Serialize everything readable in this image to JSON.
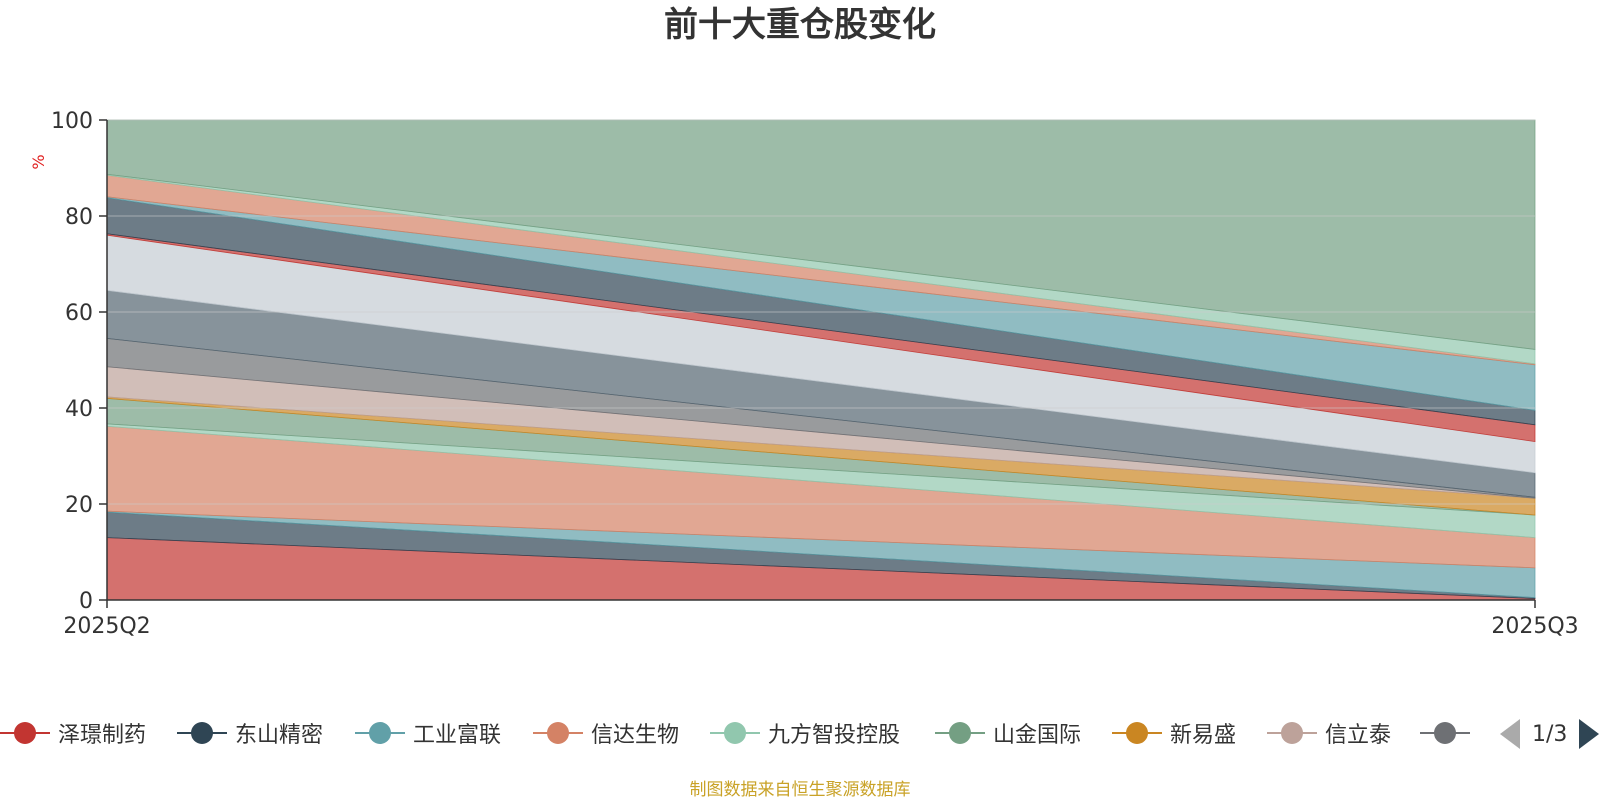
{
  "chart_data": {
    "type": "area",
    "stacked": true,
    "normalized_percent": true,
    "title": "前十大重仓股变化",
    "ylabel": "%",
    "xlabel": "",
    "categories": [
      "2025Q2",
      "2025Q3"
    ],
    "ylim": [
      0,
      100
    ],
    "yticks": [
      0,
      20,
      40,
      60,
      80,
      100
    ],
    "grid": true,
    "series": [
      {
        "name": "泽璟制药",
        "color": "#c23531",
        "values": [
          13.0,
          0.3
        ]
      },
      {
        "name": "东山精密",
        "color": "#2f4554",
        "values": [
          5.3,
          0.2
        ]
      },
      {
        "name": "工业富联",
        "color": "#61a0a8",
        "values": [
          0.2,
          6.2
        ]
      },
      {
        "name": "信达生物",
        "color": "#d48265",
        "values": [
          17.7,
          6.3
        ]
      },
      {
        "name": "九方智投控股",
        "color": "#91c7ae",
        "values": [
          0.5,
          4.7
        ]
      },
      {
        "name": "山金国际",
        "color": "#749f83",
        "values": [
          5.3,
          0.0
        ]
      },
      {
        "name": "新易盛",
        "color": "#ca8622",
        "values": [
          0.3,
          3.5
        ]
      },
      {
        "name": "信立泰",
        "color": "#bda29a",
        "values": [
          6.3,
          0.0
        ]
      },
      {
        "name": "",
        "color": "#6e7074",
        "values": [
          5.9,
          0.2
        ]
      },
      {
        "name": "",
        "color": "#546570",
        "values": [
          10.0,
          5.1
        ]
      },
      {
        "name": "",
        "color": "#c4ccd3",
        "values": [
          11.5,
          6.5
        ]
      },
      {
        "name": "",
        "color": "#c23531",
        "values": [
          0.3,
          3.5
        ]
      },
      {
        "name": "",
        "color": "#2f4554",
        "values": [
          7.5,
          3.0
        ]
      },
      {
        "name": "",
        "color": "#61a0a8",
        "values": [
          0.2,
          9.5
        ]
      },
      {
        "name": "",
        "color": "#d48265",
        "values": [
          4.5,
          0.2
        ]
      },
      {
        "name": "",
        "color": "#91c7ae",
        "values": [
          0.2,
          3.0
        ]
      },
      {
        "name": "",
        "color": "#749f83",
        "values": [
          11.3,
          47.8
        ]
      }
    ]
  },
  "legend": {
    "items": [
      {
        "label": "泽璟制药",
        "color": "#c23531"
      },
      {
        "label": "东山精密",
        "color": "#2f4554"
      },
      {
        "label": "工业富联",
        "color": "#61a0a8"
      },
      {
        "label": "信达生物",
        "color": "#d48265"
      },
      {
        "label": "九方智投控股",
        "color": "#91c7ae"
      },
      {
        "label": "山金国际",
        "color": "#749f83"
      },
      {
        "label": "新易盛",
        "color": "#ca8622"
      },
      {
        "label": "信立泰",
        "color": "#bda29a"
      },
      {
        "label": "",
        "color": "#6e7074"
      }
    ],
    "pager_text": "1/3"
  },
  "source_note": "制图数据来自恒生聚源数据库",
  "colors": {
    "axis": "#333333",
    "grid": "#cccccc",
    "ylabel": "#e02020",
    "source_note": "#c9a227"
  }
}
